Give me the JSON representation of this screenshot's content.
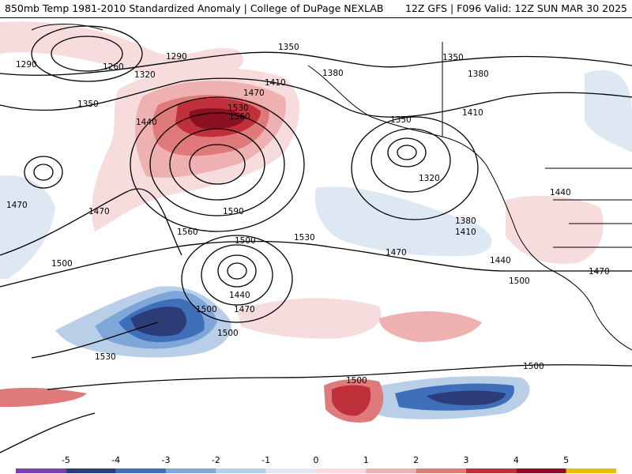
{
  "header": {
    "left_title": "850mb Temp 1981-2010 Standardized Anomaly | College of DuPage NEXLAB",
    "right_title": "12Z GFS | F096 Valid: 12Z SUN MAR 30 2025"
  },
  "colorbar": {
    "ticks": [
      "-5",
      "-4",
      "-3",
      "-2",
      "-1",
      "0",
      "1",
      "2",
      "3",
      "4",
      "5"
    ],
    "colors": [
      "#7b3fb0",
      "#2b3c78",
      "#3f6fb8",
      "#7fa6d8",
      "#b9cfe8",
      "#dde8f3",
      "#f6dcdc",
      "#eeb0b0",
      "#e07a7a",
      "#c0303a",
      "#8a1022",
      "#e6c000"
    ]
  },
  "contour_labels": [
    "1290",
    "1260",
    "1320",
    "1350",
    "1290",
    "1350",
    "1350",
    "1380",
    "1380",
    "1410",
    "1470",
    "1530",
    "1560",
    "1440",
    "1410",
    "1350",
    "1320",
    "1440",
    "1470",
    "1590",
    "1380",
    "1410",
    "1440",
    "1470",
    "1560",
    "1500",
    "1530",
    "1470",
    "1500",
    "1440",
    "1470",
    "1500",
    "1530",
    "1500",
    "1500",
    "1500",
    "1470",
    "1500"
  ],
  "colors": {
    "land_fill": "#ffffff",
    "contour": "#000000"
  }
}
